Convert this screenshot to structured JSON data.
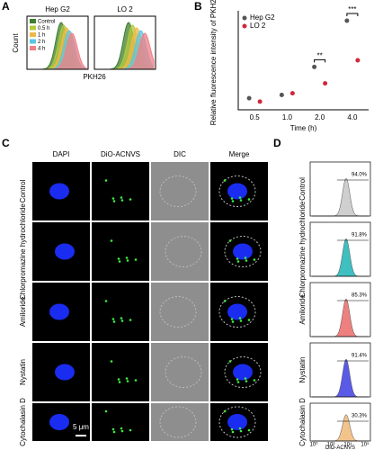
{
  "panel_labels": [
    "A",
    "B",
    "C",
    "D"
  ],
  "panel_a": {
    "y_label": "Count",
    "x_label": "PKH26",
    "subplots": [
      "Hep G2",
      "LO 2"
    ],
    "legend": [
      {
        "name": "Control",
        "color": "#3d7f2c"
      },
      {
        "name": "0.5 h",
        "color": "#b5c93a"
      },
      {
        "name": "1 h",
        "color": "#efb84a"
      },
      {
        "name": "2 h",
        "color": "#5cc6e0"
      },
      {
        "name": "4 h",
        "color": "#f07f86"
      }
    ]
  },
  "chart_data": {
    "type": "scatter",
    "y_label": "Relative fluorescence intensity of PKH26",
    "x_label": "Time (h)",
    "categories": [
      "0.5",
      "1.0",
      "2.0",
      "4.0"
    ],
    "ylim": [
      0,
      3000
    ],
    "series": [
      {
        "name": "Hep G2",
        "color": "#555555",
        "values": [
          350,
          450,
          1300,
          2700
        ]
      },
      {
        "name": "LO 2",
        "color": "#d0293a",
        "values": [
          250,
          500,
          800,
          1500
        ]
      }
    ],
    "annotations": [
      {
        "text": "**",
        "x": "2.0"
      },
      {
        "text": "***",
        "x": "4.0"
      }
    ]
  },
  "panel_c": {
    "columns": [
      "DAPI",
      "DiO-ACNVS",
      "DIC",
      "Merge"
    ],
    "rows": [
      "Control",
      "Chlorpromazine hydrochloride",
      "Amiloride",
      "Nystatin",
      "Cytochalasin D"
    ],
    "scale_bar": "5 μm"
  },
  "panel_d": {
    "rows": [
      {
        "label": "94.0%",
        "color": "#cfcfcf"
      },
      {
        "label": "91.8%",
        "color": "#3fbfbf"
      },
      {
        "label": "85.3%",
        "color": "#ee8080"
      },
      {
        "label": "91.4%",
        "color": "#5a5ae6"
      },
      {
        "label": "30.3%",
        "color": "#f2c48c"
      }
    ],
    "x_label": "DiO-ACNVS",
    "xticks": [
      "10⁰",
      "10³",
      "10⁴",
      "10⁵"
    ]
  }
}
